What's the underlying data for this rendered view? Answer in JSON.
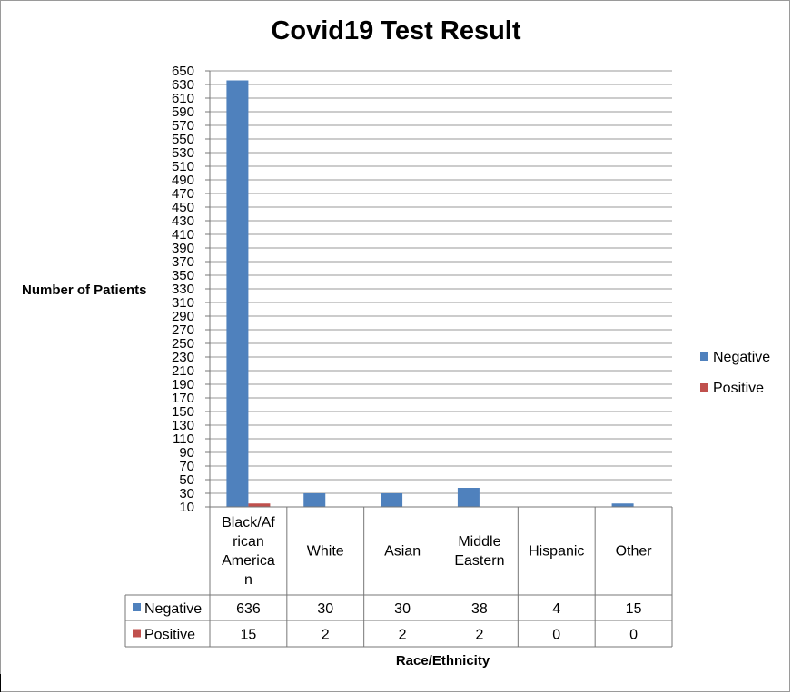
{
  "chart_data": {
    "type": "bar",
    "title": "Covid19 Test Result",
    "xlabel": "Race/Ethnicity",
    "ylabel": "Number of Patients",
    "categories": [
      "Black/African American",
      "White",
      "Asian",
      "Middle Eastern",
      "Hispanic",
      "Other"
    ],
    "category_label_lines": [
      [
        "Black/Af",
        "rican",
        "America",
        "n"
      ],
      [
        "White"
      ],
      [
        "Asian"
      ],
      [
        "Middle",
        "Eastern"
      ],
      [
        "Hispanic"
      ],
      [
        "Other"
      ]
    ],
    "series": [
      {
        "name": "Negative",
        "color": "#4f81bd",
        "values": [
          636,
          30,
          30,
          38,
          4,
          15
        ]
      },
      {
        "name": "Positive",
        "color": "#c0504d",
        "values": [
          15,
          2,
          2,
          2,
          0,
          0
        ]
      }
    ],
    "ylim": [
      10,
      650
    ],
    "yticks": [
      10,
      30,
      50,
      70,
      90,
      110,
      130,
      150,
      170,
      190,
      210,
      230,
      250,
      270,
      290,
      310,
      330,
      350,
      370,
      390,
      410,
      430,
      450,
      470,
      490,
      510,
      530,
      550,
      570,
      590,
      610,
      630,
      650
    ],
    "grid": true,
    "legend": "right",
    "data_table": true
  }
}
